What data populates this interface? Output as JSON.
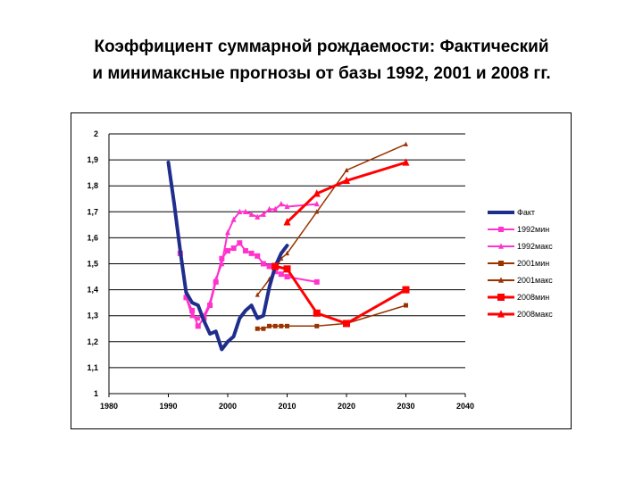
{
  "title": {
    "line1": "Коэффициент суммарной рождаемости: Фактический",
    "line2": "и минимаксные прогнозы от базы 1992, 2001 и 2008 гг."
  },
  "chart_data": {
    "type": "line",
    "title": "",
    "xlabel": "",
    "ylabel": "",
    "xlim": [
      1980,
      2040
    ],
    "ylim": [
      1,
      2
    ],
    "x_ticks": [
      1980,
      1990,
      2000,
      2010,
      2020,
      2030,
      2040
    ],
    "y_ticks": [
      1,
      1.1,
      1.2,
      1.3,
      1.4,
      1.5,
      1.6,
      1.7,
      1.8,
      1.9,
      2
    ],
    "y_tick_labels": [
      "1",
      "1,1",
      "1,2",
      "1,3",
      "1,4",
      "1,5",
      "1,6",
      "1,7",
      "1,8",
      "1,9",
      "2"
    ],
    "grid": "horizontal",
    "legend_position": "right",
    "series": [
      {
        "name": "Факт",
        "color": "#1f2e8c",
        "marker": "none",
        "width": 4,
        "points": [
          [
            1990,
            1.89
          ],
          [
            1991,
            1.73
          ],
          [
            1992,
            1.55
          ],
          [
            1993,
            1.39
          ],
          [
            1994,
            1.35
          ],
          [
            1995,
            1.34
          ],
          [
            1996,
            1.28
          ],
          [
            1997,
            1.23
          ],
          [
            1998,
            1.24
          ],
          [
            1999,
            1.17
          ],
          [
            2000,
            1.2
          ],
          [
            2001,
            1.22
          ],
          [
            2002,
            1.29
          ],
          [
            2003,
            1.32
          ],
          [
            2004,
            1.34
          ],
          [
            2005,
            1.29
          ],
          [
            2006,
            1.3
          ],
          [
            2007,
            1.41
          ],
          [
            2008,
            1.49
          ],
          [
            2009,
            1.54
          ],
          [
            2010,
            1.57
          ]
        ]
      },
      {
        "name": "1992мин",
        "color": "#ff33cc",
        "marker": "square",
        "width": 2,
        "points": [
          [
            1992,
            1.54
          ],
          [
            1993,
            1.37
          ],
          [
            1994,
            1.32
          ],
          [
            1995,
            1.26
          ],
          [
            1996,
            1.29
          ],
          [
            1997,
            1.34
          ],
          [
            1998,
            1.43
          ],
          [
            1999,
            1.52
          ],
          [
            2000,
            1.55
          ],
          [
            2001,
            1.56
          ],
          [
            2002,
            1.58
          ],
          [
            2003,
            1.55
          ],
          [
            2004,
            1.54
          ],
          [
            2005,
            1.53
          ],
          [
            2006,
            1.5
          ],
          [
            2007,
            1.49
          ],
          [
            2008,
            1.47
          ],
          [
            2009,
            1.46
          ],
          [
            2010,
            1.45
          ],
          [
            2015,
            1.43
          ]
        ]
      },
      {
        "name": "1992макс",
        "color": "#ff33cc",
        "marker": "triangle",
        "width": 2,
        "points": [
          [
            1992,
            1.54
          ],
          [
            1993,
            1.37
          ],
          [
            1994,
            1.3
          ],
          [
            1995,
            1.29
          ],
          [
            1996,
            1.3
          ],
          [
            1997,
            1.35
          ],
          [
            1998,
            1.44
          ],
          [
            1999,
            1.5
          ],
          [
            2000,
            1.62
          ],
          [
            2001,
            1.67
          ],
          [
            2002,
            1.7
          ],
          [
            2003,
            1.7
          ],
          [
            2004,
            1.69
          ],
          [
            2005,
            1.68
          ],
          [
            2006,
            1.69
          ],
          [
            2007,
            1.71
          ],
          [
            2008,
            1.71
          ],
          [
            2009,
            1.73
          ],
          [
            2010,
            1.72
          ],
          [
            2015,
            1.73
          ]
        ]
      },
      {
        "name": "2001мин",
        "color": "#993300",
        "marker": "square",
        "width": 1.5,
        "points": [
          [
            2005,
            1.25
          ],
          [
            2006,
            1.25
          ],
          [
            2007,
            1.26
          ],
          [
            2008,
            1.26
          ],
          [
            2009,
            1.26
          ],
          [
            2010,
            1.26
          ],
          [
            2015,
            1.26
          ],
          [
            2020,
            1.27
          ],
          [
            2030,
            1.34
          ]
        ]
      },
      {
        "name": "2001макс",
        "color": "#993300",
        "marker": "triangle",
        "width": 1.5,
        "points": [
          [
            2005,
            1.38
          ],
          [
            2007,
            1.44
          ],
          [
            2009,
            1.52
          ],
          [
            2010,
            1.54
          ],
          [
            2015,
            1.7
          ],
          [
            2020,
            1.86
          ],
          [
            2030,
            1.96
          ]
        ]
      },
      {
        "name": "2008мин",
        "color": "#ff0000",
        "marker": "square",
        "width": 3,
        "points": [
          [
            2008,
            1.49
          ],
          [
            2010,
            1.48
          ],
          [
            2015,
            1.31
          ],
          [
            2020,
            1.27
          ],
          [
            2030,
            1.4
          ]
        ]
      },
      {
        "name": "2008макс",
        "color": "#ff0000",
        "marker": "triangle",
        "width": 3,
        "points": [
          [
            2010,
            1.66
          ],
          [
            2015,
            1.77
          ],
          [
            2020,
            1.82
          ],
          [
            2030,
            1.89
          ]
        ]
      }
    ]
  }
}
